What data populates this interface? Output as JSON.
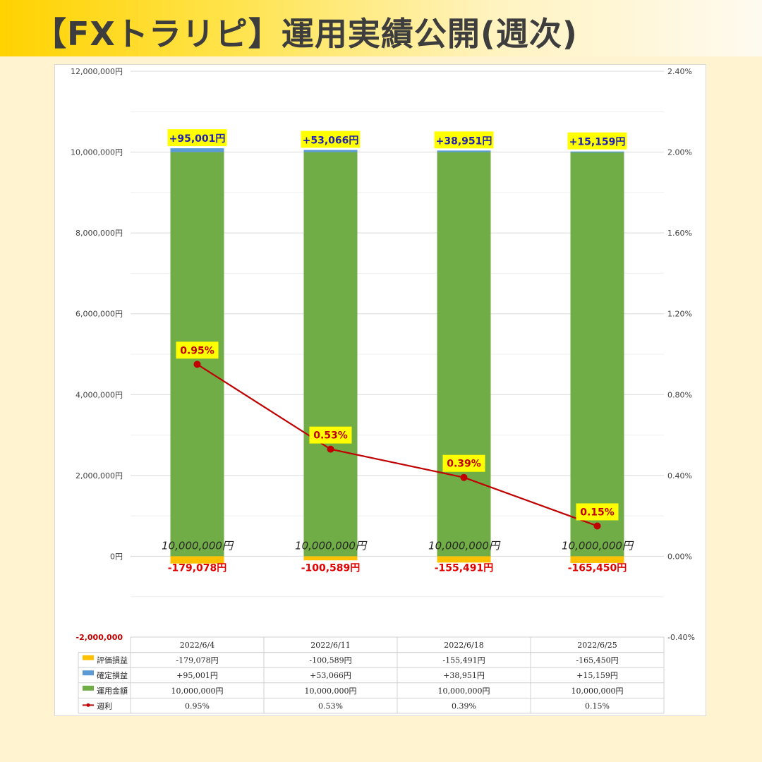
{
  "header": {
    "title": "【FXトラリピ】運用実績公開(週次)"
  },
  "colors": {
    "evaluation": "#ffc000",
    "realized": "#5b9bd5",
    "principal": "#70ad47",
    "weekly": "#c00000",
    "highlight": "#ffff00"
  },
  "chart_data": {
    "type": "bar",
    "stacked": true,
    "categories": [
      "2022/6/4",
      "2022/6/11",
      "2022/6/18",
      "2022/6/25"
    ],
    "series": [
      {
        "name": "評価損益",
        "type": "bar",
        "values": [
          -179078,
          -100589,
          -155491,
          -165450
        ],
        "display": [
          "-179,078円",
          "-100,589円",
          "-155,491円",
          "-165,450円"
        ],
        "table_display": [
          "-179,078円",
          "-100,589円",
          "-155,491円",
          "-165,450円"
        ]
      },
      {
        "name": "確定損益",
        "type": "bar",
        "values": [
          95001,
          53066,
          38951,
          15159
        ],
        "display": [
          "+95,001円",
          "+53,066円",
          "+38,951円",
          "+15,159円"
        ],
        "table_display": [
          "+95,001円",
          "+53,066円",
          "+38,951円",
          "+15,159円"
        ]
      },
      {
        "name": "運用金額",
        "type": "bar",
        "values": [
          10000000,
          10000000,
          10000000,
          10000000
        ],
        "display": [
          "10,000,000円",
          "10,000,000円",
          "10,000,000円",
          "10,000,000円"
        ],
        "table_display": [
          "10,000,000円",
          "10,000,000円",
          "10,000,000円",
          "10,000,000円"
        ]
      },
      {
        "name": "週利",
        "type": "line",
        "axis": "right",
        "values": [
          0.95,
          0.53,
          0.39,
          0.15
        ],
        "display": [
          "0.95%",
          "0.53%",
          "0.39%",
          "0.15%"
        ],
        "table_display": [
          "0.95%",
          "0.53%",
          "0.39%",
          "0.15%"
        ]
      }
    ],
    "y_left": {
      "ylim": [
        -2000000,
        12000000
      ],
      "ticks": [
        12000000,
        10000000,
        8000000,
        6000000,
        4000000,
        2000000,
        0,
        -2000000
      ],
      "tick_labels": [
        "12,000,000円",
        "10,000,000円",
        "8,000,000円",
        "6,000,000円",
        "4,000,000円",
        "2,000,000円",
        "0円",
        "-2,000,000"
      ]
    },
    "y_right": {
      "ylim": [
        -0.4,
        2.4
      ],
      "ticks": [
        2.4,
        2.0,
        1.6,
        1.2,
        0.8,
        0.4,
        0.0,
        -0.4
      ],
      "tick_labels": [
        "2.40%",
        "2.00%",
        "1.60%",
        "1.20%",
        "0.80%",
        "0.40%",
        "0.00%",
        "-0.40%"
      ]
    },
    "grid": true,
    "legend": "data-table"
  }
}
